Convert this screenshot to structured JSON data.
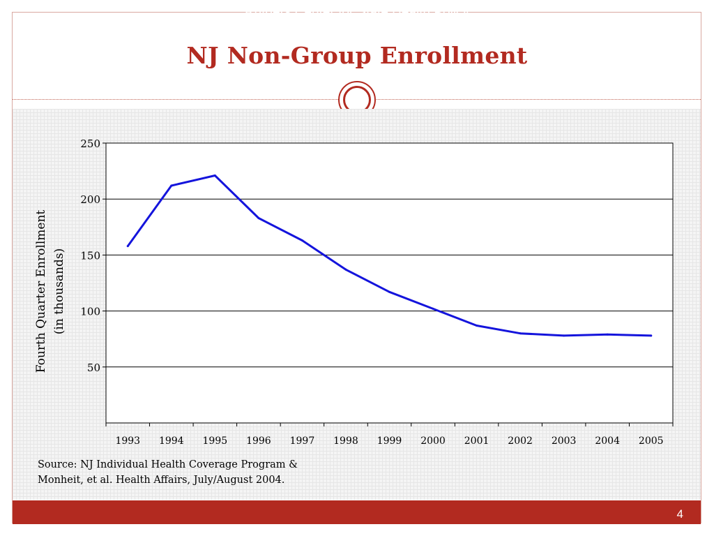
{
  "slide": {
    "title": "NJ Non-Group Enrollment",
    "source_line1": "Source: NJ Individual Health Coverage Program &",
    "source_line2": "Monheit, et al. Health Affairs, July/August 2004.",
    "footer": "Rutgers Center for State Health Policy",
    "page_number": "4",
    "accent_color": "#b22a20"
  },
  "chart_data": {
    "type": "line",
    "title": "",
    "xlabel": "",
    "ylabel_line1": "Fourth Quarter Enrollment",
    "ylabel_line2": "(in thousands)",
    "categories": [
      "1993",
      "1994",
      "1995",
      "1996",
      "1997",
      "1998",
      "1999",
      "2000",
      "2001",
      "2002",
      "2003",
      "2004",
      "2005"
    ],
    "series": [
      {
        "color": "#1414dc",
        "values": [
          158,
          212,
          221,
          183,
          163,
          137,
          117,
          102,
          87,
          80,
          78,
          79,
          78
        ]
      }
    ],
    "ylim": [
      0,
      250
    ],
    "yticks": [
      50,
      100,
      150,
      200,
      250
    ],
    "grid": true,
    "legend": "none"
  }
}
